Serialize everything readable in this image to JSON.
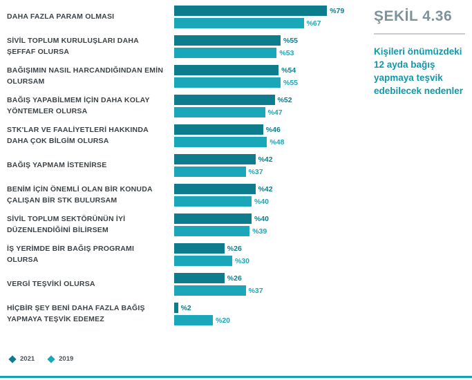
{
  "figure": {
    "label": "ŞEKİL 4.36",
    "caption": "Kişileri önümüzdeki 12 ayda bağış yapmaya teşvik edebilecek nedenler"
  },
  "legend": [
    {
      "label": "2021",
      "color": "#0d7d8d"
    },
    {
      "label": "2019",
      "color": "#1ba7ba"
    }
  ],
  "colors": {
    "series_2021": "#0d7d8d",
    "series_2019": "#1ba7ba",
    "caption_teal": "#1297ab",
    "figure_label_gray": "#7e929d",
    "bottom_rule": "#16a0b4"
  },
  "chart_data": {
    "type": "bar",
    "orientation": "horizontal",
    "value_prefix": "%",
    "xlim": [
      0,
      100
    ],
    "title": "ŞEKİL 4.36 — Kişileri önümüzdeki 12 ayda bağış yapmaya teşvik edebilecek nedenler",
    "categories": [
      "DAHA FAZLA PARAM OLMASI",
      "SİVİL TOPLUM KURULUŞLARI DAHA ŞEFFAF OLURSA",
      "BAĞIŞIMIN NASIL HARCANDIĞINDAN EMİN OLURSAM",
      "BAĞIŞ YAPABİLMEM İÇİN DAHA KOLAY YÖNTEMLER OLURSA",
      "STK'LAR VE FAALİYETLERİ HAKKINDA DAHA ÇOK BİLGİM OLURSA",
      "BAĞIŞ YAPMAM İSTENİRSE",
      "BENİM İÇİN ÖNEMLİ OLAN BİR KONUDA ÇALIŞAN BİR STK BULURSAM",
      "SİVİL TOPLUM SEKTÖRÜNÜN İYİ DÜZENLENDİĞİNİ BİLİRSEM",
      "İŞ YERİMDE BİR BAĞIŞ PROGRAMI OLURSA",
      "VERGİ TEŞVİKİ OLURSA",
      "HİÇBİR ŞEY BENİ DAHA FAZLA BAĞIŞ YAPMAYA TEŞVİK EDEMEZ"
    ],
    "series": [
      {
        "name": "2021",
        "color": "#0d7d8d",
        "values": [
          79,
          55,
          54,
          52,
          46,
          42,
          42,
          40,
          26,
          26,
          2
        ]
      },
      {
        "name": "2019",
        "color": "#1ba7ba",
        "values": [
          67,
          53,
          55,
          47,
          48,
          37,
          40,
          39,
          30,
          37,
          20
        ]
      }
    ]
  }
}
